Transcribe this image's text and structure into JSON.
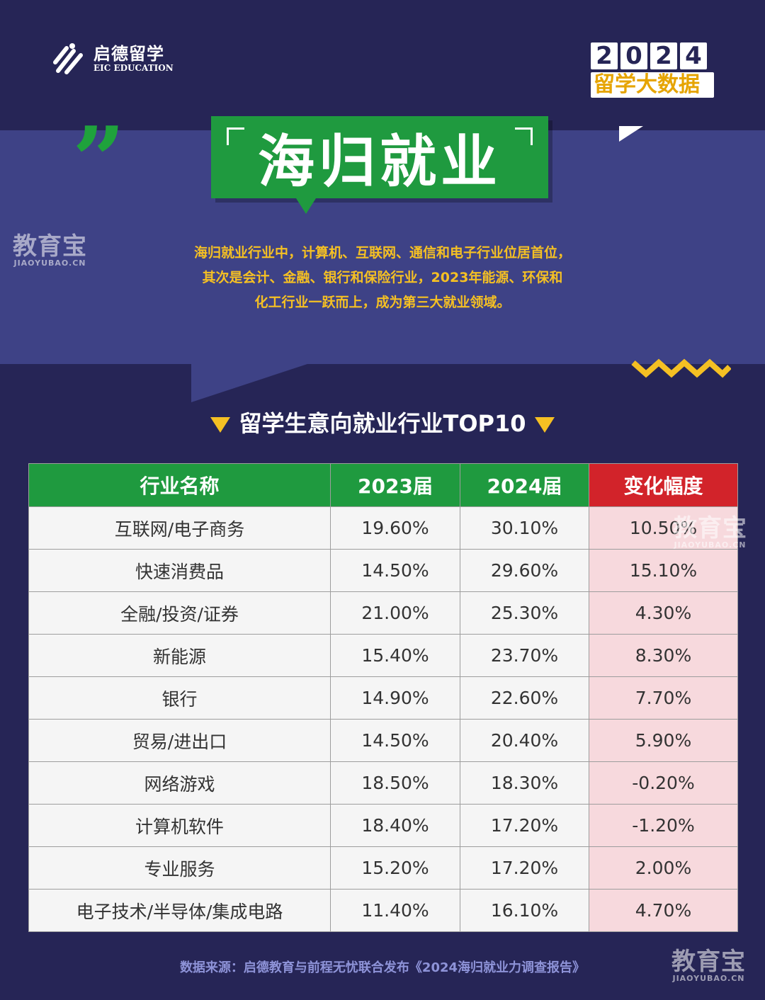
{
  "brand": {
    "name_cn": "启德留学",
    "name_en": "EIC EDUCATION"
  },
  "badge": {
    "year_digits": [
      "2",
      "0",
      "2",
      "4"
    ],
    "subtitle": "留学大数据"
  },
  "watermark": {
    "cn": "教育宝",
    "en": "JIAOYUBAO.CN"
  },
  "title": "海归就业",
  "intro": [
    "海归就业行业中，计算机、互联网、通信和电子行业位居首位，",
    "其次是会计、金融、银行和保险行业，2023年能源、环保和",
    "化工行业一跃而上，成为第三大就业领域。"
  ],
  "subtitle": "留学生意向就业行业TOP10",
  "table": {
    "headers": [
      "行业名称",
      "2023届",
      "2024届",
      "变化幅度"
    ],
    "rows": [
      [
        "互联网/电子商务",
        "19.60%",
        "30.10%",
        "10.50%"
      ],
      [
        "快速消费品",
        "14.50%",
        "29.60%",
        "15.10%"
      ],
      [
        "全融/投资/证券",
        "21.00%",
        "25.30%",
        "4.30%"
      ],
      [
        "新能源",
        "15.40%",
        "23.70%",
        "8.30%"
      ],
      [
        "银行",
        "14.90%",
        "22.60%",
        "7.70%"
      ],
      [
        "贸易/进出口",
        "14.50%",
        "20.40%",
        "5.90%"
      ],
      [
        "网络游戏",
        "18.50%",
        "18.30%",
        "-0.20%"
      ],
      [
        "计算机软件",
        "18.40%",
        "17.20%",
        "-1.20%"
      ],
      [
        "专业服务",
        "15.20%",
        "17.20%",
        "2.00%"
      ],
      [
        "电子技术/半导体/集成电路",
        "11.40%",
        "16.10%",
        "4.70%"
      ]
    ]
  },
  "source": "数据来源：启德教育与前程无忧联合发布《2024海归就业力调查报告》",
  "colors": {
    "background": "#262556",
    "band": "#3e4286",
    "green": "#1f9a3f",
    "red": "#d2232a",
    "yellow": "#f5c023"
  }
}
